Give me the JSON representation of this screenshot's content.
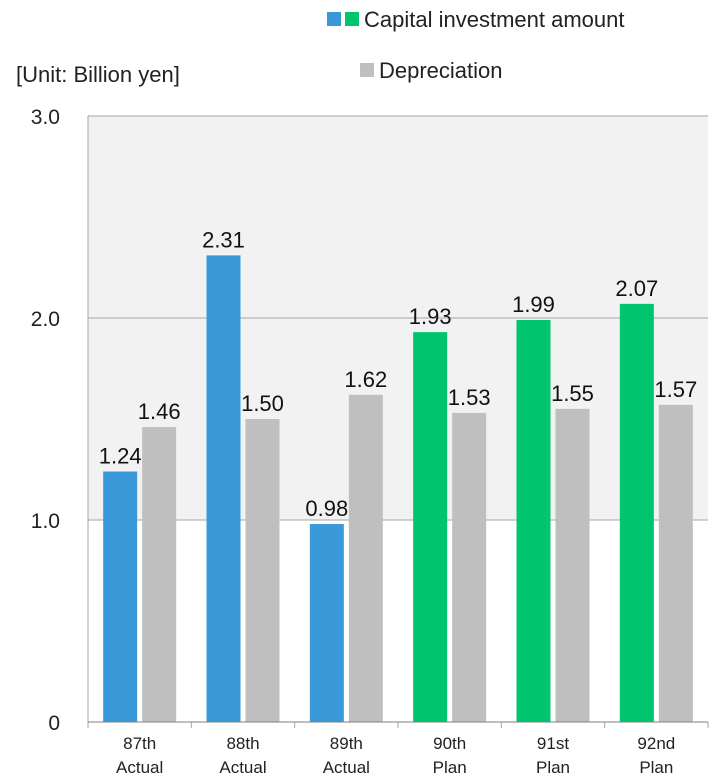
{
  "chart_data": {
    "type": "bar",
    "unit_label": "[Unit: Billion yen]",
    "categories": [
      [
        "87th",
        "Actual"
      ],
      [
        "88th",
        "Actual"
      ],
      [
        "89th",
        "Actual"
      ],
      [
        "90th",
        "Plan"
      ],
      [
        "91st",
        "Plan"
      ],
      [
        "92nd",
        "Plan"
      ]
    ],
    "series": [
      {
        "name": "Capital investment amount",
        "values": [
          1.24,
          2.31,
          0.98,
          1.93,
          1.99,
          2.07
        ],
        "colors": [
          "#3a9ad9",
          "#3a9ad9",
          "#3a9ad9",
          "#00c46e",
          "#00c46e",
          "#00c46e"
        ],
        "value_labels": [
          "1.24",
          "2.31",
          "0.98",
          "1.93",
          "1.99",
          "2.07"
        ]
      },
      {
        "name": "Depreciation",
        "values": [
          1.46,
          1.5,
          1.62,
          1.53,
          1.55,
          1.57
        ],
        "colors": [
          "#bfbfbf",
          "#bfbfbf",
          "#bfbfbf",
          "#bfbfbf",
          "#bfbfbf",
          "#bfbfbf"
        ],
        "value_labels": [
          "1.46",
          "1.50",
          "1.62",
          "1.53",
          "1.55",
          "1.57"
        ]
      }
    ],
    "ylim": [
      0,
      3
    ],
    "yticks": [
      {
        "value": 0,
        "label": "0"
      },
      {
        "value": 1,
        "label": "1.0"
      },
      {
        "value": 2,
        "label": "2.0"
      },
      {
        "value": 3,
        "label": "3.0"
      }
    ],
    "band_color": "#f2f2f2",
    "grid_color": "#a6a6a6",
    "legend_placement": "top-right",
    "legend_swatches": [
      [
        "#3a9ad9",
        "#00c46e"
      ],
      [
        "#bfbfbf"
      ]
    ]
  }
}
